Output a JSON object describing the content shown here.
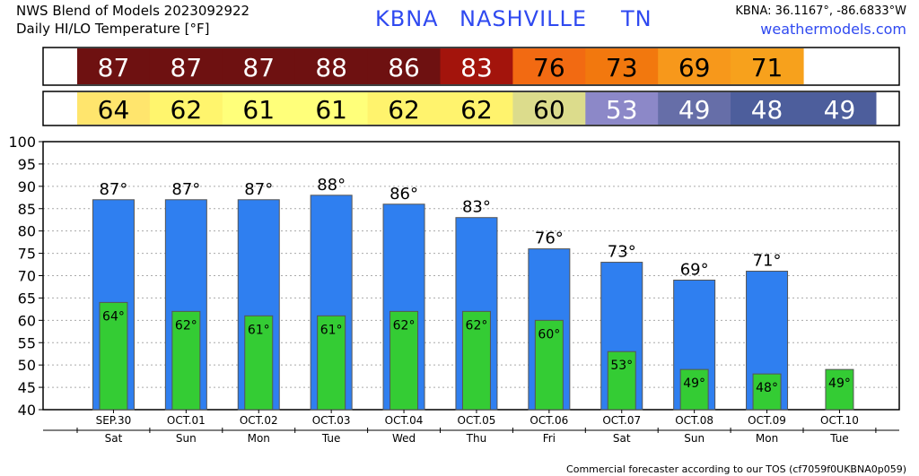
{
  "header": {
    "title_line1": "NWS Blend of Models 2023092922",
    "title_line2": "Daily HI/LO Temperature [°F]",
    "station_code": "KBNA",
    "station_city": "NASHVILLE",
    "station_state": "TN",
    "coords": "KBNA: 36.1167°, -86.6833°W",
    "credit": "weathermodels.com"
  },
  "footer": "Commercial forecaster according to our TOS (cf7059f0UKBNA0p059)",
  "hi_strip_colors": [
    "#6e1111",
    "#6e1111",
    "#6e1111",
    "#6e1111",
    "#6e1111",
    "#a3140c",
    "#f26a12",
    "#f2780e",
    "#f7981b",
    "#f7a11c"
  ],
  "lo_strip_colors": [
    "#ffe56d",
    "#fff56d",
    "#ffff7a",
    "#ffff7a",
    "#fff36d",
    "#fff36d",
    "#dcdc8c",
    "#8c88c8",
    "#666ea8",
    "#4d5e9c",
    "#4d5e9c"
  ],
  "colors": {
    "hi_bar": "#2f7ff0",
    "lo_bar": "#34cc34",
    "grid": "#aaaaaa"
  },
  "chart_data": {
    "type": "bar",
    "categories": [
      "SEP.30",
      "OCT.01",
      "OCT.02",
      "OCT.03",
      "OCT.04",
      "OCT.05",
      "OCT.06",
      "OCT.07",
      "OCT.08",
      "OCT.09",
      "OCT.10"
    ],
    "days": [
      "Sat",
      "Sun",
      "Mon",
      "Tue",
      "Wed",
      "Thu",
      "Fri",
      "Sat",
      "Sun",
      "Mon",
      "Tue"
    ],
    "series": [
      {
        "values": [
          87,
          87,
          87,
          88,
          86,
          83,
          76,
          73,
          69,
          71,
          null
        ]
      },
      {
        "values": [
          64,
          62,
          61,
          61,
          62,
          62,
          60,
          53,
          49,
          48,
          49
        ]
      }
    ],
    "ylim": [
      40,
      100
    ],
    "yticks": [
      40,
      45,
      50,
      55,
      60,
      65,
      70,
      75,
      80,
      85,
      90,
      95,
      100
    ],
    "grid": true,
    "label_suffix": "°"
  }
}
